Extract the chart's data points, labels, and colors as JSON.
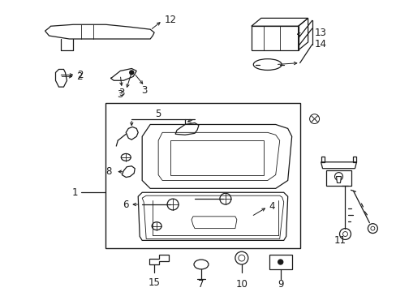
{
  "bg_color": "#ffffff",
  "line_color": "#1a1a1a",
  "fig_width": 4.89,
  "fig_height": 3.6,
  "dpi": 100,
  "fs": 8.5,
  "lw": 0.9
}
